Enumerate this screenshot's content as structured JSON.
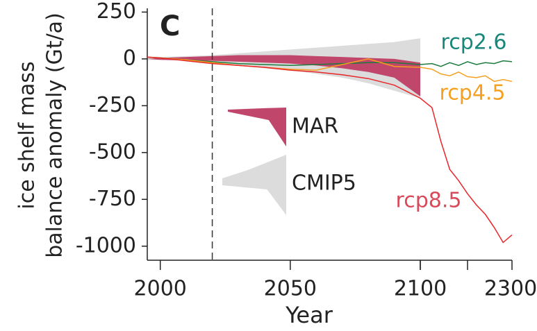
{
  "chart_data": {
    "type": "line",
    "panel_label": "C",
    "ylabel": [
      "ice shelf mass",
      "balance anomaly (Gt/a)"
    ],
    "xlabel": "Year",
    "x": [
      1995,
      2000,
      2010,
      2020,
      2030,
      2040,
      2050,
      2060,
      2070,
      2080,
      2090,
      2100,
      2120,
      2140,
      2160,
      2180,
      2200,
      2220,
      2240,
      2260,
      2280,
      2300
    ],
    "xlim": [
      1995,
      2100
    ],
    "xticks": [
      2000,
      2050,
      2100
    ],
    "x2lim": [
      2100,
      2300
    ],
    "x2ticks": [
      {
        "value": 2100,
        "label": null
      },
      {
        "value": 2200,
        "label": null
      },
      2300
    ],
    "ylim": [
      -1075,
      270
    ],
    "yticks": [
      250,
      0,
      -250,
      -500,
      -750,
      -1000
    ],
    "vline": 2020,
    "bands": [
      {
        "name": "CMIP5",
        "color": "#dcdcdc",
        "upper": [
          10,
          10,
          15,
          20,
          30,
          40,
          50,
          60,
          70,
          80,
          90,
          110,
          null,
          null,
          null,
          null,
          null,
          null,
          null,
          null,
          null,
          null
        ],
        "lower": [
          -5,
          -5,
          -10,
          -20,
          -35,
          -50,
          -60,
          -80,
          -100,
          -130,
          -170,
          -210,
          null,
          null,
          null,
          null,
          null,
          null,
          null,
          null,
          null,
          null
        ]
      },
      {
        "name": "MAR",
        "color": "#c0466b",
        "upper": [
          0,
          5,
          10,
          15,
          20,
          20,
          20,
          15,
          10,
          5,
          0,
          -20,
          null,
          null,
          null,
          null,
          null,
          null,
          null,
          null,
          null,
          null
        ],
        "lower": [
          0,
          -5,
          -8,
          -10,
          -15,
          -20,
          -25,
          -35,
          -50,
          -70,
          -100,
          -200,
          null,
          null,
          null,
          null,
          null,
          null,
          null,
          null,
          null,
          null
        ]
      }
    ],
    "series": [
      {
        "name": "rcp2.6",
        "color": "#1b7a3c",
        "label_color": "#17877a",
        "values": [
          10,
          5,
          -5,
          -15,
          -25,
          -30,
          -35,
          -30,
          -25,
          -20,
          -20,
          -30,
          -25,
          -40,
          -20,
          -35,
          -15,
          -30,
          -20,
          -25,
          -10,
          -15
        ]
      },
      {
        "name": "rcp4.5",
        "color": "#f5a020",
        "label_color": "#f5a020",
        "values": [
          10,
          5,
          -5,
          -20,
          -35,
          -45,
          -55,
          -60,
          -30,
          0,
          -40,
          -45,
          -55,
          -80,
          -90,
          -70,
          -95,
          -100,
          -90,
          -120,
          -110,
          -120
        ]
      },
      {
        "name": "rcp8.5",
        "color": "#e8262a",
        "label_color": "#d84a5a",
        "values": [
          10,
          5,
          -10,
          -25,
          -35,
          -45,
          -60,
          -70,
          -85,
          -105,
          -140,
          -210,
          -260,
          -440,
          -590,
          -650,
          -720,
          -780,
          -830,
          -900,
          -980,
          -940
        ]
      }
    ]
  }
}
